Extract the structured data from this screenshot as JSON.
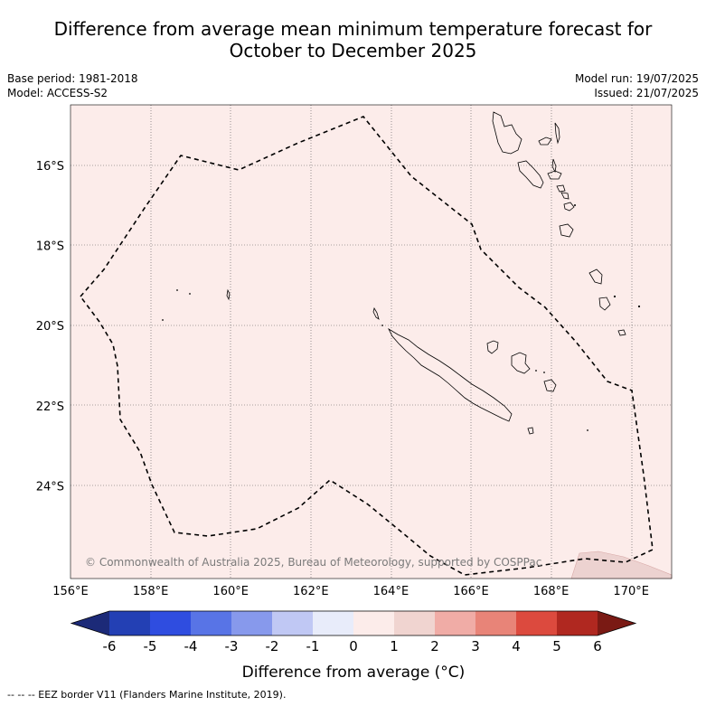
{
  "title": {
    "line1": "Difference from average mean minimum temperature forecast for",
    "line2": "October to December 2025"
  },
  "info": {
    "base_period": "Base period: 1981-2018",
    "model": "Model: ACCESS-S2",
    "model_run": "Model run: 19/07/2025",
    "issued": "Issued: 21/07/2025"
  },
  "map": {
    "background_color": "#fcecea",
    "lon_labels": [
      "156°E",
      "158°E",
      "160°E",
      "162°E",
      "164°E",
      "166°E",
      "168°E",
      "170°E"
    ],
    "lat_labels": [
      "16°S",
      "18°S",
      "20°S",
      "22°S",
      "24°S"
    ],
    "copyright": "© Commonwealth of Australia 2025, Bureau of Meteorology, supported by COSPPac"
  },
  "colorbar": {
    "colors": [
      "#1c2a78",
      "#2340b4",
      "#2f4de0",
      "#5874e6",
      "#8799ec",
      "#c0c8f4",
      "#e8ecfa",
      "#fcecea",
      "#f0d4d0",
      "#f0aca6",
      "#e88478",
      "#dc4a3e",
      "#b02820",
      "#7a1a14"
    ],
    "tick_labels": [
      "-6",
      "-5",
      "-4",
      "-3",
      "-2",
      "-1",
      "0",
      "1",
      "2",
      "3",
      "4",
      "5",
      "6"
    ],
    "label": "Difference from average (°C)"
  },
  "legend": {
    "eez": "--  --  -- EEZ border V11 (Flanders Marine Institute, 2019)."
  }
}
